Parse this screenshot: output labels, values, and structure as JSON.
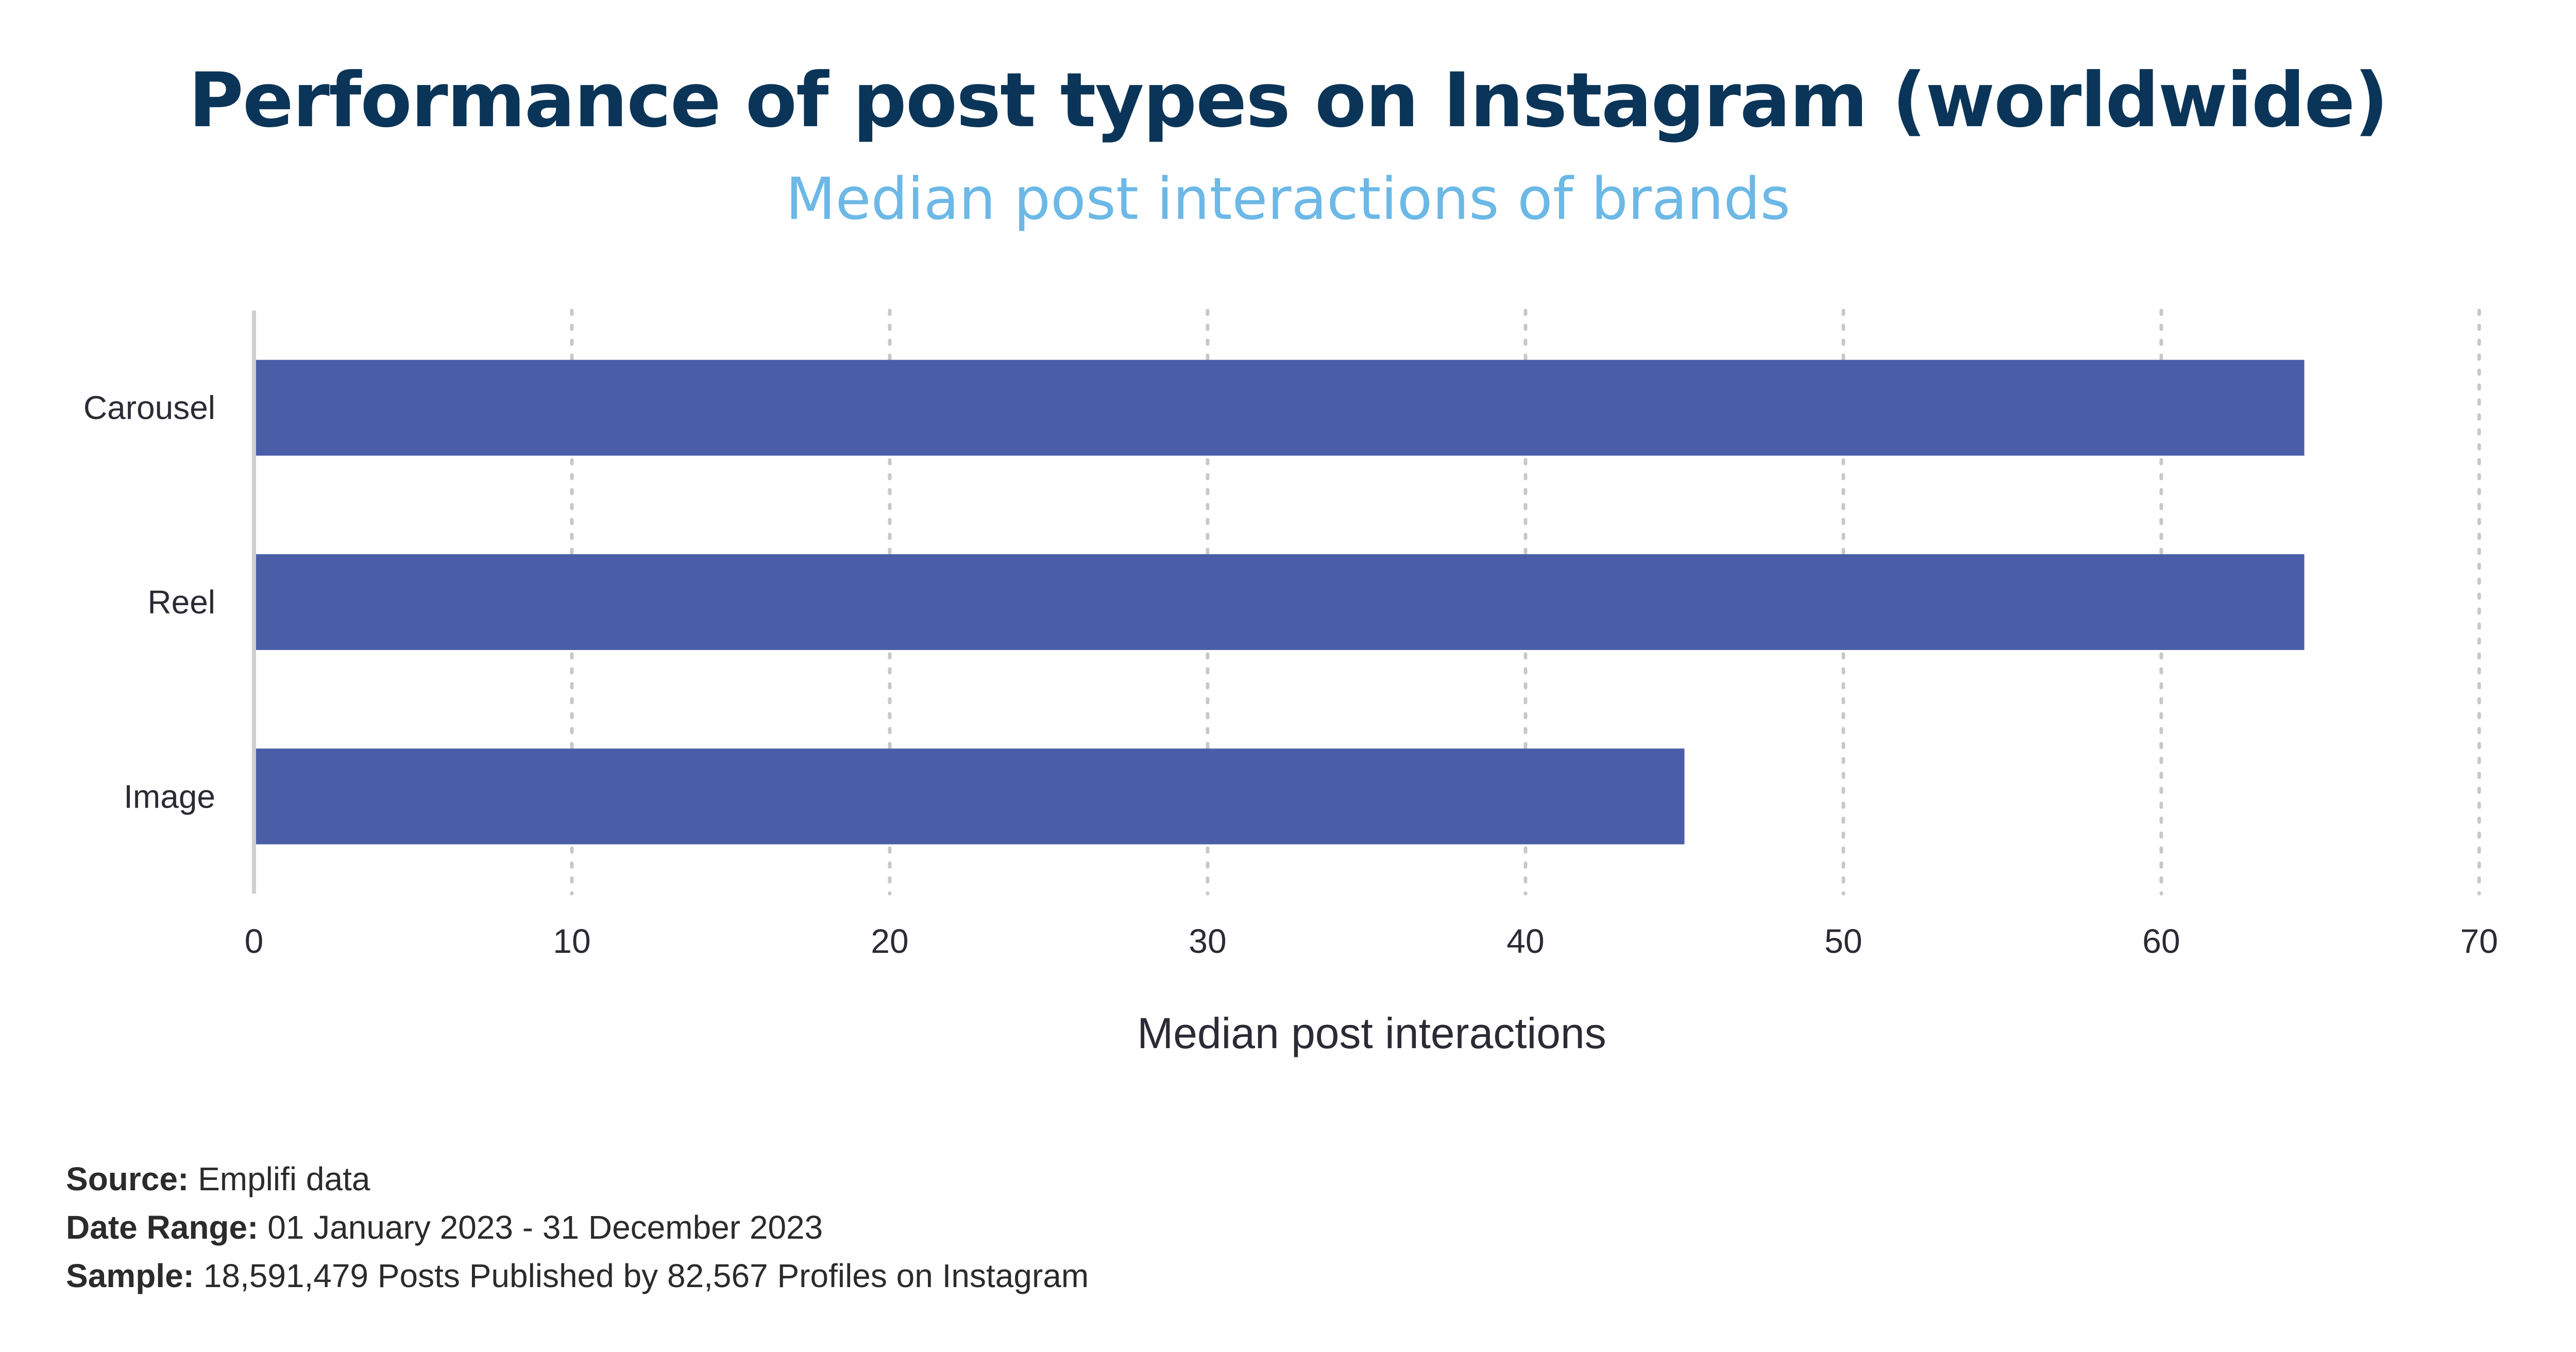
{
  "title": "Performance of post types on Instagram (worldwide)",
  "subtitle": "Median post interactions of brands",
  "footer": {
    "source_label": "Source:",
    "source_value": "Emplifi data",
    "date_label": "Date Range:",
    "date_value": "01 January 2023 - 31 December 2023",
    "sample_label": "Sample:",
    "sample_value": "18,591,479 Posts Published by 82,567 Profiles on Instagram"
  },
  "colors": {
    "bar": "#4a5ea8",
    "title": "#0b3558",
    "subtitle": "#6cb8e6",
    "grid": "#c8c8c8",
    "axis_text": "#2b2b35"
  },
  "chart_data": {
    "type": "bar",
    "orientation": "horizontal",
    "categories": [
      "Carousel",
      "Reel",
      "Image"
    ],
    "values": [
      64.5,
      64.5,
      45
    ],
    "xlabel": "Median post interactions",
    "ylabel": "",
    "xlim": [
      0,
      70
    ],
    "xticks": [
      0,
      10,
      20,
      30,
      40,
      50,
      60,
      70
    ],
    "xtick_labels": [
      "0",
      "10",
      "20",
      "30",
      "40",
      "50",
      "60",
      "70"
    ],
    "grid": "vertical dotted",
    "legend": "none"
  }
}
